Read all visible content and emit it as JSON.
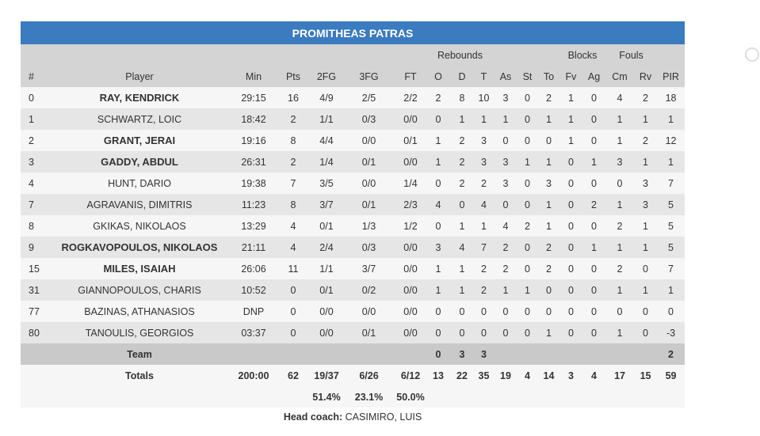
{
  "team_name": "PROMITHEAS PATRAS",
  "group_headers": {
    "rebounds": "Rebounds",
    "blocks": "Blocks",
    "fouls": "Fouls"
  },
  "columns": [
    "#",
    "Player",
    "Min",
    "Pts",
    "2FG",
    "3FG",
    "FT",
    "O",
    "D",
    "T",
    "As",
    "St",
    "To",
    "Fv",
    "Ag",
    "Cm",
    "Rv",
    "PIR"
  ],
  "players": [
    {
      "starter": true,
      "cells": [
        "0",
        "RAY, KENDRICK",
        "29:15",
        "16",
        "4/9",
        "2/5",
        "2/2",
        "2",
        "8",
        "10",
        "3",
        "0",
        "2",
        "1",
        "0",
        "4",
        "2",
        "18"
      ]
    },
    {
      "starter": false,
      "cells": [
        "1",
        "SCHWARTZ, LOIC",
        "18:42",
        "2",
        "1/1",
        "0/3",
        "0/0",
        "0",
        "1",
        "1",
        "1",
        "0",
        "1",
        "1",
        "0",
        "1",
        "1",
        "1"
      ]
    },
    {
      "starter": true,
      "cells": [
        "2",
        "GRANT, JERAI",
        "19:16",
        "8",
        "4/4",
        "0/0",
        "0/1",
        "1",
        "2",
        "3",
        "0",
        "0",
        "0",
        "1",
        "0",
        "1",
        "2",
        "12"
      ]
    },
    {
      "starter": true,
      "cells": [
        "3",
        "GADDY, ABDUL",
        "26:31",
        "2",
        "1/4",
        "0/1",
        "0/0",
        "1",
        "2",
        "3",
        "3",
        "1",
        "1",
        "0",
        "1",
        "3",
        "1",
        "1"
      ]
    },
    {
      "starter": false,
      "cells": [
        "4",
        "HUNT, DARIO",
        "19:38",
        "7",
        "3/5",
        "0/0",
        "1/4",
        "0",
        "2",
        "2",
        "3",
        "0",
        "3",
        "0",
        "0",
        "0",
        "3",
        "7"
      ]
    },
    {
      "starter": false,
      "cells": [
        "7",
        "AGRAVANIS, DIMITRIS",
        "11:23",
        "8",
        "3/7",
        "0/1",
        "2/3",
        "4",
        "0",
        "4",
        "0",
        "0",
        "1",
        "0",
        "2",
        "1",
        "3",
        "5"
      ]
    },
    {
      "starter": false,
      "cells": [
        "8",
        "GKIKAS, NIKOLAOS",
        "13:29",
        "4",
        "0/1",
        "1/3",
        "1/2",
        "0",
        "1",
        "1",
        "4",
        "2",
        "1",
        "0",
        "0",
        "2",
        "1",
        "5"
      ]
    },
    {
      "starter": true,
      "cells": [
        "9",
        "ROGKAVOPOULOS, NIKOLAOS",
        "21:11",
        "4",
        "2/4",
        "0/3",
        "0/0",
        "3",
        "4",
        "7",
        "2",
        "0",
        "2",
        "0",
        "1",
        "1",
        "1",
        "5"
      ]
    },
    {
      "starter": true,
      "cells": [
        "15",
        "MILES, ISAIAH",
        "26:06",
        "11",
        "1/1",
        "3/7",
        "0/0",
        "1",
        "1",
        "2",
        "2",
        "0",
        "2",
        "0",
        "0",
        "2",
        "0",
        "7"
      ]
    },
    {
      "starter": false,
      "cells": [
        "31",
        "GIANNOPOULOS, CHARIS",
        "10:52",
        "0",
        "0/1",
        "0/2",
        "0/0",
        "1",
        "1",
        "2",
        "1",
        "1",
        "0",
        "0",
        "0",
        "1",
        "1",
        "1"
      ]
    },
    {
      "starter": false,
      "cells": [
        "77",
        "BAZINAS, ATHANASIOS",
        "DNP",
        "0",
        "0/0",
        "0/0",
        "0/0",
        "0",
        "0",
        "0",
        "0",
        "0",
        "0",
        "0",
        "0",
        "0",
        "0",
        "0"
      ]
    },
    {
      "starter": false,
      "cells": [
        "80",
        "TANOULIS, GEORGIOS",
        "03:37",
        "0",
        "0/0",
        "0/1",
        "0/0",
        "0",
        "0",
        "0",
        "0",
        "0",
        "1",
        "0",
        "0",
        "1",
        "0",
        "-3"
      ]
    }
  ],
  "team_row": [
    "",
    "Team",
    "",
    "",
    "",
    "",
    "",
    "0",
    "3",
    "3",
    "",
    "",
    "",
    "",
    "",
    "",
    "",
    "2"
  ],
  "totals_row": [
    "",
    "Totals",
    "200:00",
    "62",
    "19/37",
    "6/26",
    "6/12",
    "13",
    "22",
    "35",
    "19",
    "4",
    "14",
    "3",
    "4",
    "17",
    "15",
    "59"
  ],
  "pct_row": [
    "",
    "",
    "",
    "",
    "51.4%",
    "23.1%",
    "50.0%",
    "",
    "",
    "",
    "",
    "",
    "",
    "",
    "",
    "",
    "",
    ""
  ],
  "coach": {
    "label": "Head coach:",
    "name": "CASIMIRO, LUIS"
  }
}
